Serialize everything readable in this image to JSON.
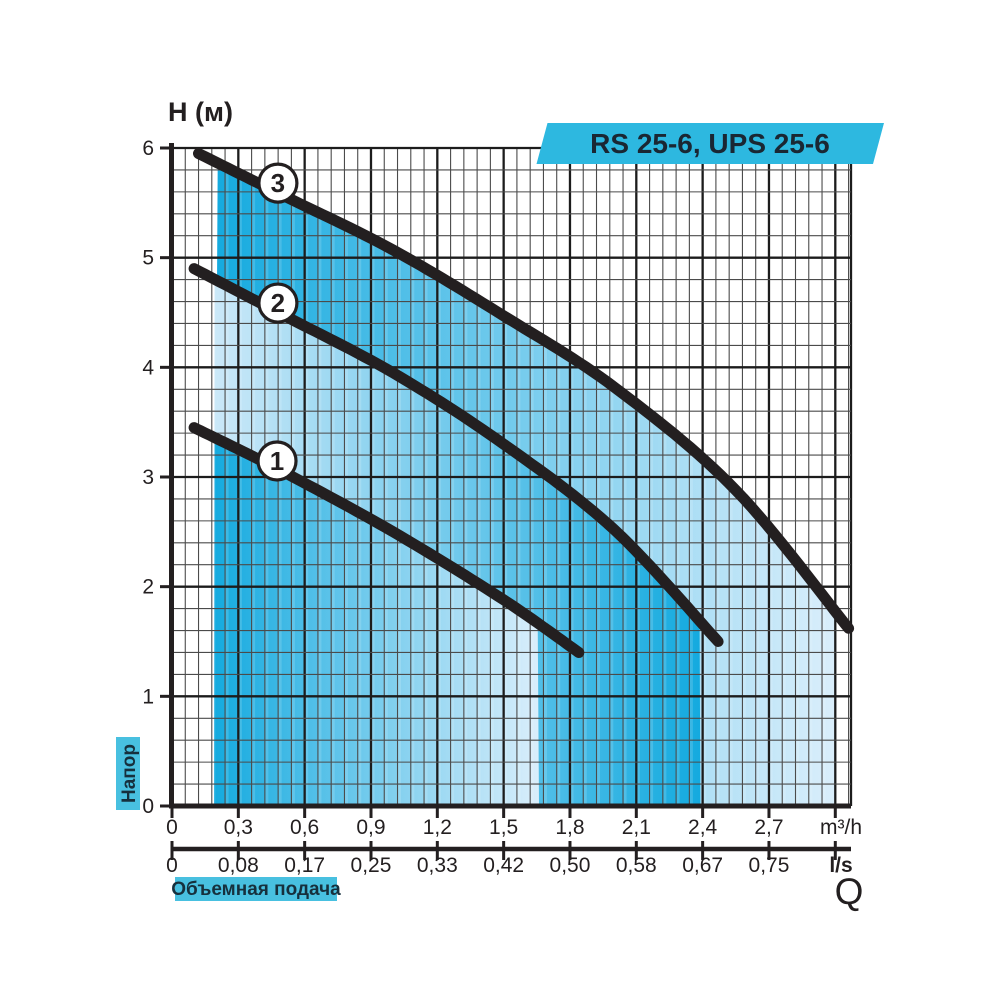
{
  "banner": {
    "label": "RS 25-6, UPS 25-6"
  },
  "y_axis": {
    "title": "H (м)",
    "tick_labels": [
      "0",
      "1",
      "2",
      "3",
      "4",
      "5",
      "6"
    ],
    "tick_values": [
      0,
      1,
      2,
      3,
      4,
      5,
      6
    ],
    "range": [
      0,
      6
    ]
  },
  "x_axis_m3h": {
    "tick_labels": [
      "0",
      "0,3",
      "0,6",
      "0,9",
      "1,2",
      "1,5",
      "1,8",
      "2,1",
      "2,4",
      "2,7"
    ],
    "tick_values": [
      0,
      0.3,
      0.6,
      0.9,
      1.2,
      1.5,
      1.8,
      2.1,
      2.4,
      2.7
    ],
    "unit": "m³/h",
    "unit_tick_value": 3.0,
    "range": [
      0,
      3.07
    ]
  },
  "x_axis_ls": {
    "tick_labels": [
      "0",
      "0,08",
      "0,17",
      "0,25",
      "0,33",
      "0,42",
      "0,50",
      "0,58",
      "0,67",
      "0,75"
    ],
    "tick_values_m3h": [
      0,
      0.3,
      0.6,
      0.9,
      1.2,
      1.5,
      1.8,
      2.1,
      2.4,
      2.7
    ],
    "unit": "l/s",
    "flow_symbol": "Q"
  },
  "captions": {
    "head": "Напор",
    "flow": "Объемная подача"
  },
  "colors": {
    "banner_bg": "#2db8e0",
    "banner_text": "#1a2733",
    "caption_bg": "#48c0e0",
    "caption_text": "#16303d",
    "curve": "#231f20",
    "grid_minor": "#4b4b4b",
    "grid_major": "#1c1c1c",
    "fill_dark": "#14aadf",
    "fill_light": "#daeefb",
    "fill_light_start": "#cbe8f8"
  },
  "chart_data": {
    "type": "line",
    "title": "RS 25-6, UPS 25-6",
    "xlabel_primary": "Q (m³/h)",
    "xlabel_secondary": "Q (l/s)",
    "ylabel": "H (м)",
    "x_range_m3h": [
      0,
      3.07
    ],
    "y_range_m": [
      0,
      6
    ],
    "grid": "minor 0.06 m³/h × 0.2 m, major 0.3 m³/h × 1 m",
    "legend_position": "circled numbers on curves",
    "series": [
      {
        "label": "1",
        "points_q_h": [
          [
            0.1,
            3.45
          ],
          [
            0.5,
            3.05
          ],
          [
            1.0,
            2.5
          ],
          [
            1.5,
            1.88
          ],
          [
            1.84,
            1.4
          ]
        ],
        "fill_span_q": [
          0.19,
          1.66
        ],
        "gradient": "dark-to-light",
        "marker": {
          "q": 0.475,
          "h": 3.146
        }
      },
      {
        "label": "2",
        "points_q_h": [
          [
            0.1,
            4.9
          ],
          [
            0.5,
            4.48
          ],
          [
            1.0,
            3.95
          ],
          [
            1.5,
            3.3
          ],
          [
            2.0,
            2.52
          ],
          [
            2.47,
            1.5
          ]
        ],
        "fill_span_q": [
          0.19,
          2.39
        ],
        "gradient": "light-to-dark",
        "marker": {
          "q": 0.479,
          "h": 4.586
        }
      },
      {
        "label": "3",
        "points_q_h": [
          [
            0.12,
            5.95
          ],
          [
            0.5,
            5.57
          ],
          [
            1.0,
            5.07
          ],
          [
            1.5,
            4.47
          ],
          [
            2.0,
            3.82
          ],
          [
            2.55,
            2.88
          ],
          [
            3.06,
            1.62
          ]
        ],
        "fill_span_q": [
          0.19,
          3.0
        ],
        "gradient": "dark-to-light",
        "marker": {
          "q": 0.479,
          "h": 5.68
        }
      }
    ]
  }
}
